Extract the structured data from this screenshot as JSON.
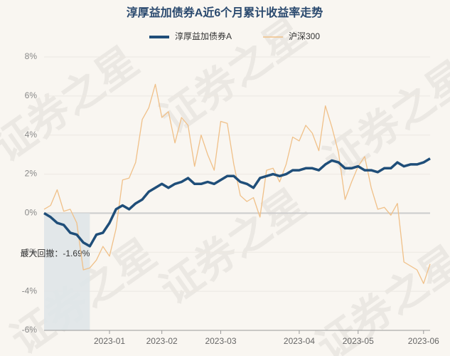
{
  "chart_data": {
    "type": "line",
    "title": "淳厚益加债券A近6个月累计收益率走势",
    "watermark": "证券之星",
    "annotations": [
      "最大回撤：-1.69%"
    ],
    "categories": [
      null,
      null,
      null,
      null,
      null,
      null,
      null,
      null,
      null,
      null,
      "2023-01",
      null,
      null,
      null,
      null,
      null,
      null,
      null,
      "2023-02",
      null,
      null,
      null,
      null,
      null,
      null,
      null,
      null,
      "2023-03",
      null,
      null,
      null,
      null,
      null,
      null,
      null,
      null,
      null,
      null,
      null,
      "2023-04",
      null,
      null,
      null,
      null,
      null,
      null,
      null,
      null,
      "2023-05",
      null,
      null,
      null,
      null,
      null,
      null,
      null,
      null,
      null,
      "2023-06",
      null
    ],
    "series": [
      {
        "name": "淳厚益加债券A",
        "color": "#1f4e79",
        "values": [
          0,
          -0.2,
          -0.5,
          -0.6,
          -1.0,
          -1.1,
          -1.5,
          -1.69,
          -1.1,
          -1.0,
          -0.5,
          0.2,
          0.4,
          0.2,
          0.5,
          0.7,
          1.1,
          1.3,
          1.5,
          1.3,
          1.5,
          1.6,
          1.8,
          1.5,
          1.5,
          1.6,
          1.5,
          1.7,
          1.9,
          1.9,
          1.6,
          1.5,
          1.3,
          1.8,
          1.9,
          2.0,
          1.9,
          2.0,
          2.2,
          2.2,
          2.3,
          2.3,
          2.2,
          2.5,
          2.7,
          2.6,
          2.3,
          2.3,
          2.4,
          2.2,
          2.2,
          2.1,
          2.3,
          2.3,
          2.6,
          2.4,
          2.5,
          2.5,
          2.6,
          2.8
        ]
      },
      {
        "name": "沪深300",
        "color": "#f0c088",
        "values": [
          0.2,
          0.4,
          1.2,
          0.1,
          0.2,
          -0.5,
          -2.9,
          -2.8,
          -2.4,
          -1.7,
          -2.2,
          -0.8,
          1.7,
          1.8,
          2.6,
          4.8,
          5.4,
          6.6,
          4.9,
          5.2,
          3.6,
          4.9,
          4.5,
          2.4,
          4.0,
          3.0,
          2.2,
          4.7,
          4.6,
          2.5,
          0.9,
          0.6,
          0.8,
          -0.2,
          2.2,
          2.3,
          1.6,
          2.5,
          3.9,
          3.7,
          4.5,
          4.1,
          3.2,
          5.5,
          4.4,
          3.1,
          0.7,
          1.6,
          2.4,
          2.9,
          1.3,
          0.2,
          0.3,
          -0.1,
          0.5,
          -2.5,
          -2.7,
          -2.9,
          -3.6,
          -2.6
        ]
      }
    ],
    "ylim": [
      -6,
      8
    ],
    "yticks": [
      {
        "value": -6,
        "label": "-6%"
      },
      {
        "value": -4,
        "label": "-4%"
      },
      {
        "value": -2,
        "label": "-2%"
      },
      {
        "value": 0,
        "label": "0%"
      },
      {
        "value": 2,
        "label": "2%"
      },
      {
        "value": 4,
        "label": "4%"
      },
      {
        "value": 6,
        "label": "6%"
      },
      {
        "value": 8,
        "label": "8%"
      }
    ],
    "grid": true,
    "legend": "top"
  }
}
